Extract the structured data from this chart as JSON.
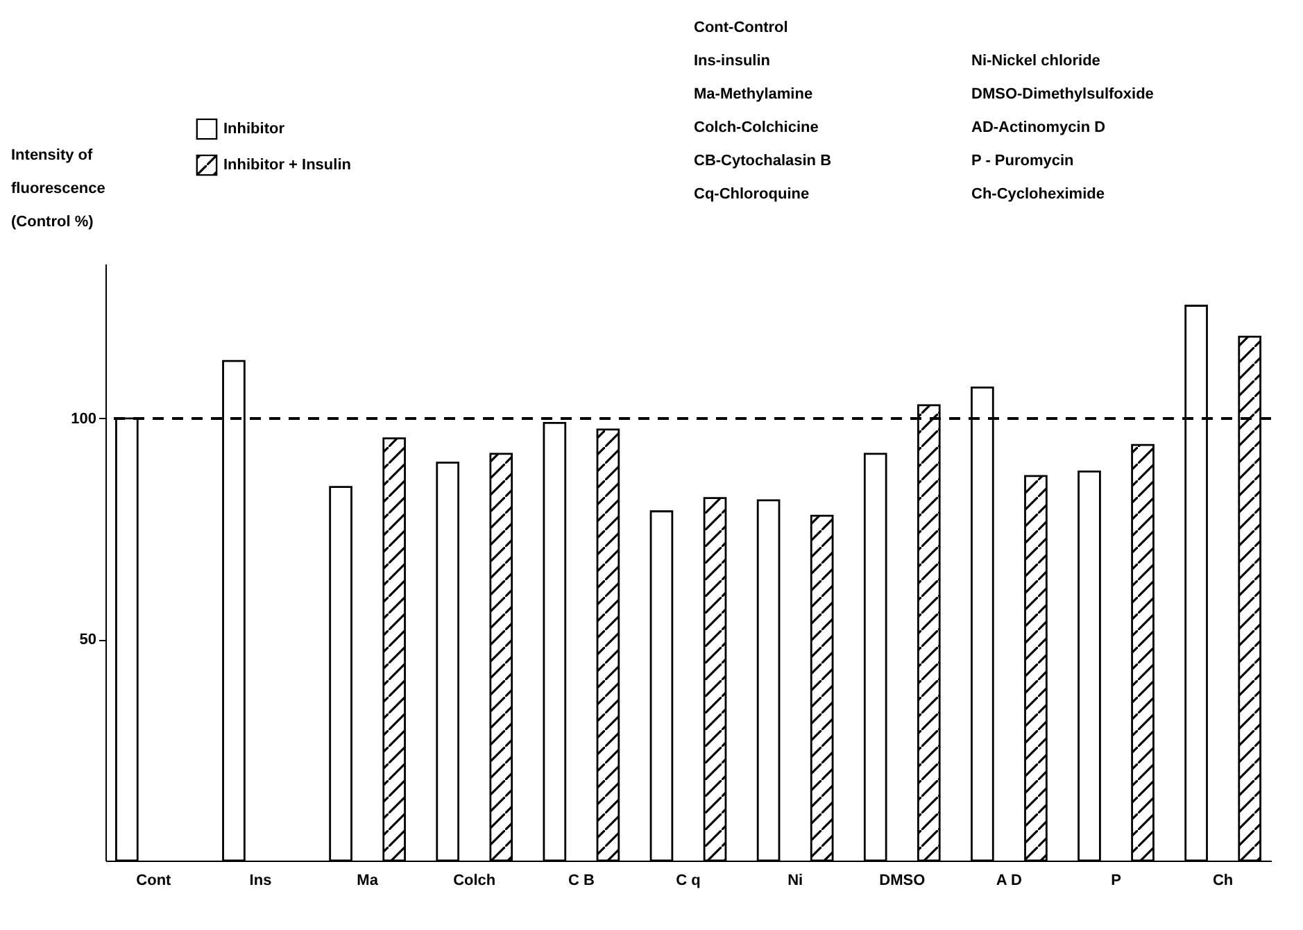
{
  "chart_data": {
    "type": "bar",
    "ylabel": "Intensity of fluorescence (Control %)",
    "categories": [
      "Cont",
      "Ins",
      "Ma",
      "Colch",
      "C B",
      "C q",
      "Ni",
      "DMSO",
      "A D",
      "P",
      "Ch"
    ],
    "series": [
      {
        "name": "Inhibitor",
        "color": "#ffffff",
        "values": [
          100,
          113,
          84.5,
          90,
          99,
          79,
          81.5,
          92,
          107,
          88,
          125.5
        ]
      },
      {
        "name": "Inhibitor + Insulin",
        "color": "#000000",
        "values": [
          null,
          null,
          95.5,
          92,
          97.5,
          82,
          78,
          103,
          87,
          94,
          118.5
        ]
      }
    ],
    "ylim": [
      0,
      135
    ],
    "yticks": [
      50,
      100
    ],
    "grid": false,
    "legend": "top left",
    "ref_lines": [
      {
        "axis": "y",
        "value": 100,
        "line_style": "dashed"
      }
    ],
    "annotations": [
      "Cont-Control",
      "Ins-insulin",
      "Ma-Methylamine",
      "Colch-Colchicine",
      "CB-Cytochalasin B",
      "Cq-Chloroquine",
      "Ni-Nickel chloride",
      "DMSO-Dimethylsulfoxide",
      "AD-Actinomycin D",
      "P - Puromycin",
      "Ch-Cycloheximide"
    ]
  }
}
